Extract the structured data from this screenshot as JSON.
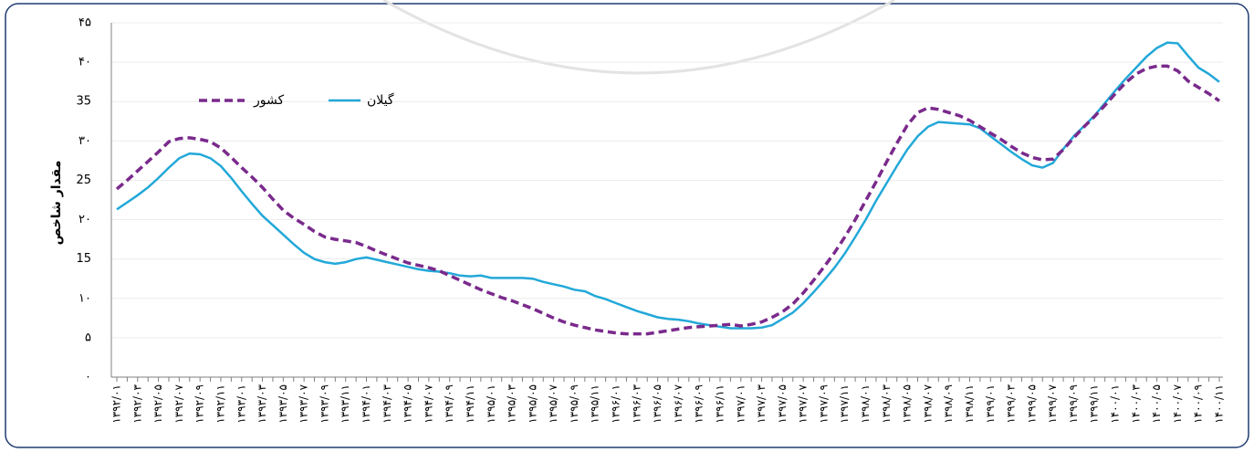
{
  "chart_data": {
    "type": "line",
    "ylabel": "مقدار شاخص",
    "legend": "upper-left",
    "grid": true,
    "ylim": [
      0,
      45
    ],
    "yticks": [
      {
        "value": 0,
        "label": "۰"
      },
      {
        "value": 5,
        "label": "۵"
      },
      {
        "value": 10,
        "label": "۱۰"
      },
      15,
      {
        "value": 20,
        "label": "۲۰"
      },
      25,
      {
        "value": 30,
        "label": "۳۰"
      },
      35,
      {
        "value": 40,
        "label": "۴۰"
      },
      {
        "value": 45,
        "label": "۴۵"
      }
    ],
    "categories": [
      "۱۳۹۲/۰۱",
      null,
      "۱۳۹۲/۰۳",
      null,
      "۱۳۹۲/۰۵",
      null,
      "۱۳۹۲/۰۷",
      null,
      "۱۳۹۲/۰۹",
      null,
      "۱۳۹۲/۱۱",
      null,
      "۱۳۹۳/۰۱",
      null,
      "۱۳۹۳/۰۳",
      null,
      "۱۳۹۳/۰۵",
      null,
      "۱۳۹۳/۰۷",
      null,
      "۱۳۹۳/۰۹",
      null,
      "۱۳۹۳/۱۱",
      null,
      "۱۳۹۴/۰۱",
      null,
      "۱۳۹۴/۰۳",
      null,
      "۱۳۹۴/۰۵",
      null,
      "۱۳۹۴/۰۷",
      null,
      "۱۳۹۴/۰۹",
      null,
      "۱۳۹۴/۱۱",
      null,
      "۱۳۹۵/۰۱",
      null,
      "۱۳۹۵/۰۳",
      null,
      "۱۳۹۵/۰۵",
      null,
      "۱۳۹۵/۰۷",
      null,
      "۱۳۹۵/۰۹",
      null,
      "۱۳۹۵/۱۱",
      null,
      "۱۳۹۶/۰۱",
      null,
      "۱۳۹۶/۰۳",
      null,
      "۱۳۹۶/۰۵",
      null,
      "۱۳۹۶/۰۷",
      null,
      "۱۳۹۶/۰۹",
      null,
      "۱۳۹۶/۱۱",
      null,
      "۱۳۹۷/۰۱",
      null,
      "۱۳۹۷/۰۳",
      null,
      "۱۳۹۷/۰۵",
      null,
      "۱۳۹۷/۰۷",
      null,
      "۱۳۹۷/۰۹",
      null,
      "۱۳۹۷/۱۱",
      null,
      "۱۳۹۸/۰۱",
      null,
      "۱۳۹۸/۰۳",
      null,
      "۱۳۹۸/۰۵",
      null,
      "۱۳۹۸/۰۷",
      null,
      "۱۳۹۸/۰۹",
      null,
      "۱۳۹۸/۱۱",
      null,
      "۱۳۹۹/۰۱",
      null,
      "۱۳۹۹/۰۳",
      null,
      "۱۳۹۹/۰۵",
      null,
      "۱۳۹۹/۰۷",
      null,
      "۱۳۹۹/۰۹",
      null,
      "۱۳۹۹/۱۱",
      null,
      "۱۴۰۰/۰۱",
      null,
      "۱۴۰۰/۰۳",
      null,
      "۱۴۰۰/۰۵",
      null,
      "۱۴۰۰/۰۷",
      null,
      "۱۴۰۰/۰۹",
      null,
      "۱۴۰۰/۱۱"
    ],
    "series": [
      {
        "name": "گیلان",
        "color": "#22a8d8",
        "dashed": false,
        "values": [
          21.3,
          22.2,
          23.1,
          24.1,
          25.3,
          26.6,
          27.8,
          28.4,
          28.3,
          27.8,
          26.8,
          25.3,
          23.6,
          22.0,
          20.5,
          19.3,
          18.1,
          16.9,
          15.8,
          15.0,
          14.6,
          14.4,
          14.6,
          15.0,
          15.2,
          14.9,
          14.6,
          14.3,
          14.0,
          13.7,
          13.5,
          13.4,
          13.2,
          12.9,
          12.8,
          12.9,
          12.6,
          12.6,
          12.6,
          12.6,
          12.5,
          12.1,
          11.8,
          11.5,
          11.1,
          10.9,
          10.3,
          9.9,
          9.4,
          8.9,
          8.4,
          8.0,
          7.6,
          7.4,
          7.3,
          7.1,
          6.8,
          6.6,
          6.4,
          6.2,
          6.2,
          6.2,
          6.3,
          6.6,
          7.4,
          8.2,
          9.4,
          10.8,
          12.3,
          13.9,
          15.7,
          17.8,
          20.0,
          22.4,
          24.6,
          26.8,
          28.9,
          30.6,
          31.8,
          32.4,
          32.3,
          32.2,
          32.1,
          31.6,
          30.6,
          29.6,
          28.6,
          27.7,
          26.9,
          26.6,
          27.2,
          29.0,
          30.6,
          31.9,
          33.2,
          34.8,
          36.4,
          37.9,
          39.3,
          40.7,
          41.8,
          42.5,
          42.4,
          40.8,
          39.3,
          38.5,
          37.5
        ]
      },
      {
        "name": "کشور",
        "color": "#7a2a8c",
        "dashed": true,
        "values": [
          23.9,
          25.0,
          26.2,
          27.4,
          28.6,
          29.9,
          30.3,
          30.4,
          30.2,
          29.9,
          29.1,
          27.9,
          26.6,
          25.4,
          24.1,
          22.6,
          21.2,
          20.2,
          19.4,
          18.5,
          17.8,
          17.5,
          17.3,
          17.1,
          16.6,
          16.0,
          15.5,
          15.0,
          14.5,
          14.2,
          13.9,
          13.5,
          12.9,
          12.3,
          11.7,
          11.1,
          10.6,
          10.1,
          9.7,
          9.2,
          8.7,
          8.1,
          7.5,
          7.0,
          6.6,
          6.3,
          6.0,
          5.8,
          5.6,
          5.5,
          5.5,
          5.5,
          5.7,
          5.9,
          6.1,
          6.3,
          6.4,
          6.5,
          6.6,
          6.7,
          6.5,
          6.7,
          7.0,
          7.6,
          8.3,
          9.3,
          10.7,
          12.3,
          14.0,
          15.8,
          17.8,
          20.0,
          22.4,
          24.8,
          27.3,
          29.7,
          32.0,
          33.6,
          34.2,
          34.0,
          33.6,
          33.2,
          32.6,
          31.8,
          31.0,
          30.2,
          29.3,
          28.5,
          27.9,
          27.6,
          27.7,
          28.9,
          30.4,
          31.8,
          33.1,
          34.5,
          36.0,
          37.4,
          38.5,
          39.2,
          39.5,
          39.5,
          38.9,
          37.6,
          36.8,
          36.0,
          35.1
        ]
      }
    ]
  }
}
